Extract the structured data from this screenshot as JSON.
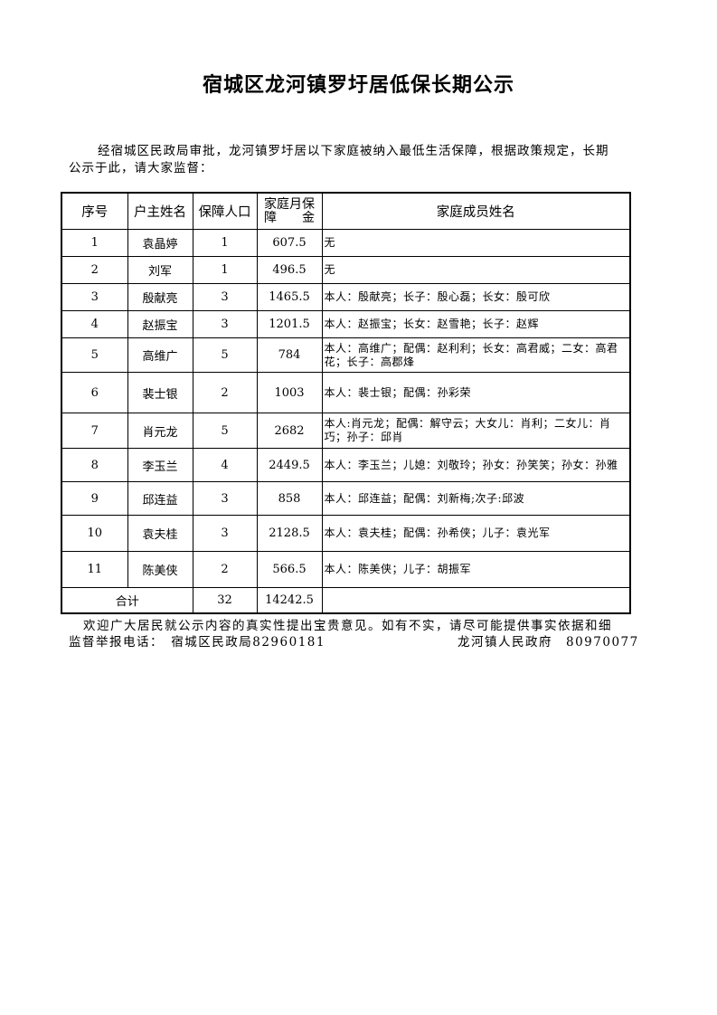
{
  "title": "宿城区龙河镇罗圩居低保长期公示",
  "intro": "经宿城区民政局审批，龙河镇罗圩居以下家庭被纳入最低生活保障，根据政策规定，长期公示于此，请大家监督：",
  "headers": {
    "no": "序号",
    "head": "户主姓名",
    "people": "保障人口",
    "amount_line1": "家庭月保",
    "amount_line2": "障　　金",
    "members": "家庭成员姓名"
  },
  "rows": [
    {
      "no": "1",
      "head": "袁晶婷",
      "people": "1",
      "amount": "607.5",
      "members": "无"
    },
    {
      "no": "2",
      "head": "刘军",
      "people": "1",
      "amount": "496.5",
      "members": "无"
    },
    {
      "no": "3",
      "head": "殷献亮",
      "people": "3",
      "amount": "1465.5",
      "members": "本人：殷献亮；长子：殷心磊；长女：殷可欣"
    },
    {
      "no": "4",
      "head": "赵振宝",
      "people": "3",
      "amount": "1201.5",
      "members": "本人：赵振宝；长女：赵雪艳；长子：赵辉"
    },
    {
      "no": "5",
      "head": "高维广",
      "people": "5",
      "amount": "784",
      "members": "本人：高维广；配偶：赵利利；长女：高君威；二女：高君花；长子：高郡烽"
    },
    {
      "no": "6",
      "head": "裴士银",
      "people": "2",
      "amount": "1003",
      "members": "本人：裴士银；配偶：孙彩荣"
    },
    {
      "no": "7",
      "head": "肖元龙",
      "people": "5",
      "amount": "2682",
      "members": "本人:肖元龙；配偶：解守云；大女儿：肖利；二女儿：肖巧；孙子：邱肖"
    },
    {
      "no": "8",
      "head": "李玉兰",
      "people": "4",
      "amount": "2449.5",
      "members": "本人：李玉兰；儿媳：刘敬玲；孙女：孙笑笑；孙女：孙雅"
    },
    {
      "no": "9",
      "head": "邱连益",
      "people": "3",
      "amount": "858",
      "members": "本人：邱连益；配偶：刘新梅;次子:邱波"
    },
    {
      "no": "10",
      "head": "袁夫桂",
      "people": "3",
      "amount": "2128.5",
      "members": "本人：袁夫桂；配偶：孙希侠；儿子：袁光军"
    },
    {
      "no": "11",
      "head": "陈美侠",
      "people": "2",
      "amount": "566.5",
      "members": "本人：陈美侠；儿子：胡振军"
    }
  ],
  "total": {
    "label": "合计",
    "people": "32",
    "amount": "14242.5"
  },
  "footer": {
    "line1": "欢迎广大居民就公示内容的真实性提出宝贵意见。如有不实，请尽可能提供事实依据和细",
    "line2": "监督举报电话：　宿城区民政局82960181",
    "line2_right": "龙河镇人民政府　80970077"
  }
}
